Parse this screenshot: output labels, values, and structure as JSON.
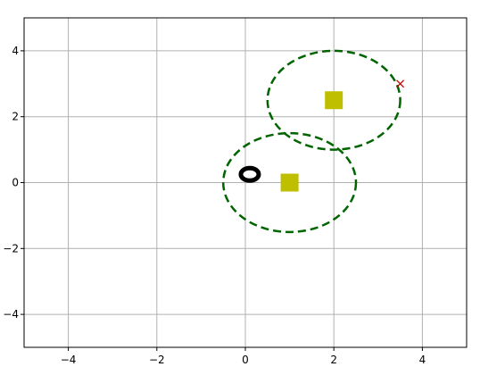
{
  "chart_data": {
    "type": "scatter",
    "title": "",
    "xlabel": "",
    "ylabel": "",
    "xlim": [
      -5,
      5
    ],
    "ylim": [
      -5,
      5
    ],
    "grid": true,
    "xticks": [
      -4,
      -2,
      0,
      2,
      4
    ],
    "yticks": [
      -4,
      -2,
      0,
      2,
      4
    ],
    "xtick_labels": [
      "−4",
      "−2",
      "0",
      "2",
      "4"
    ],
    "ytick_labels": [
      "−4",
      "−2",
      "0",
      "2",
      "4"
    ],
    "circles": [
      {
        "cx": 1.0,
        "cy": 0.0,
        "r": 1.5,
        "color": "#006400",
        "style": "dashed"
      },
      {
        "cx": 2.0,
        "cy": 2.5,
        "r": 1.5,
        "color": "#006400",
        "style": "dashed"
      }
    ],
    "squares": [
      {
        "x": 1.0,
        "y": 0.0,
        "color": "#bfbf00"
      },
      {
        "x": 2.0,
        "y": 2.5,
        "color": "#bfbf00"
      }
    ],
    "ring_markers": [
      {
        "x": 0.1,
        "y": 0.25,
        "color": "#000000"
      }
    ],
    "x_markers": [
      {
        "x": 3.5,
        "y": 3.0,
        "color": "#cc0000"
      }
    ],
    "colors": {
      "grid": "#b0b0b0",
      "axes": "#000000"
    }
  }
}
